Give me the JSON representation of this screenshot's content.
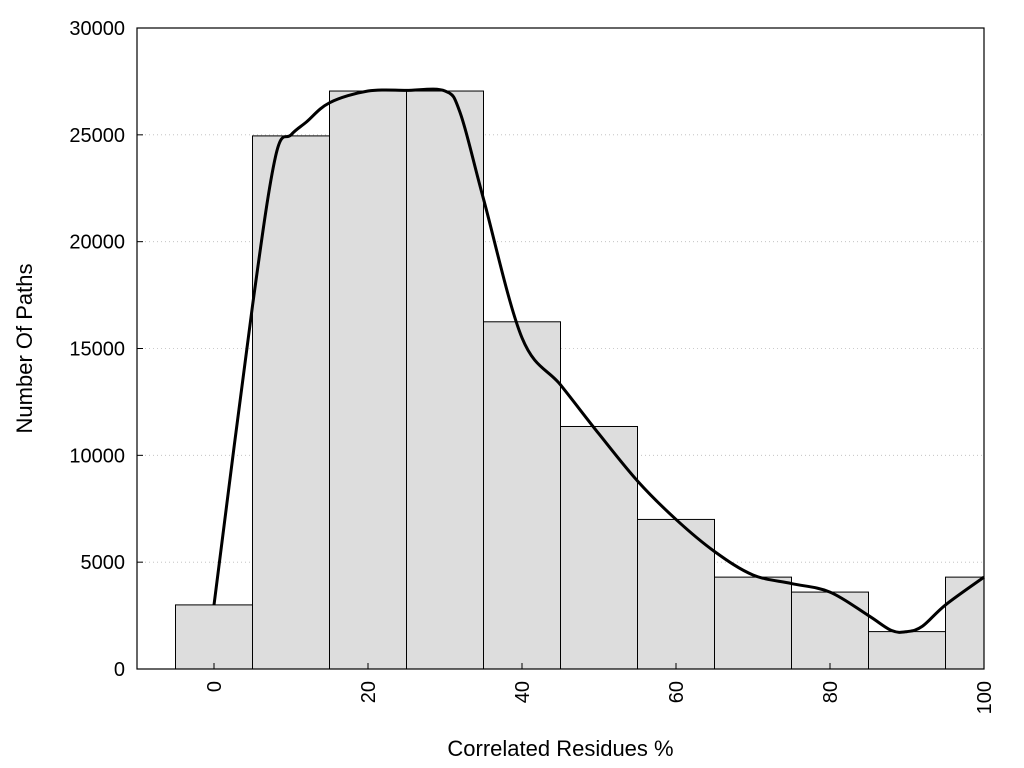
{
  "chart_data": {
    "type": "bar",
    "title": "",
    "xlabel": "Correlated Residues %",
    "ylabel": "Number Of Paths",
    "xlim": [
      -10,
      100
    ],
    "ylim": [
      0,
      30000
    ],
    "grid": {
      "horizontal": true,
      "style": "dotted"
    },
    "legend": "none",
    "bin_width": 10,
    "categories": [
      0,
      10,
      20,
      30,
      40,
      50,
      60,
      70,
      80,
      90,
      100
    ],
    "values": [
      3000,
      24950,
      27050,
      27050,
      16250,
      11350,
      7000,
      4300,
      3600,
      1750,
      4300
    ],
    "x_ticks": [
      "0",
      "20",
      "40",
      "60",
      "80",
      "100"
    ],
    "x_tick_values": [
      0,
      20,
      40,
      60,
      80,
      100
    ],
    "y_ticks": [
      "0",
      "5000",
      "10000",
      "15000",
      "20000",
      "25000",
      "30000"
    ],
    "y_tick_values": [
      0,
      5000,
      10000,
      15000,
      20000,
      25000,
      30000
    ],
    "bar_color": "#dddddd",
    "bar_edge_color": "#000000",
    "curve_color": "#000000",
    "curve": {
      "x": [
        0,
        5,
        8,
        10,
        12,
        15,
        20,
        25,
        30,
        32,
        35,
        40,
        45,
        50,
        55,
        60,
        65,
        70,
        75,
        80,
        85,
        88,
        90,
        92,
        95,
        100
      ],
      "y": [
        3000,
        17000,
        24000,
        25000,
        25600,
        26500,
        27050,
        27080,
        27050,
        26000,
        22000,
        15500,
        13300,
        11000,
        8800,
        7000,
        5500,
        4400,
        4000,
        3600,
        2500,
        1800,
        1750,
        2000,
        3000,
        4300
      ]
    }
  }
}
